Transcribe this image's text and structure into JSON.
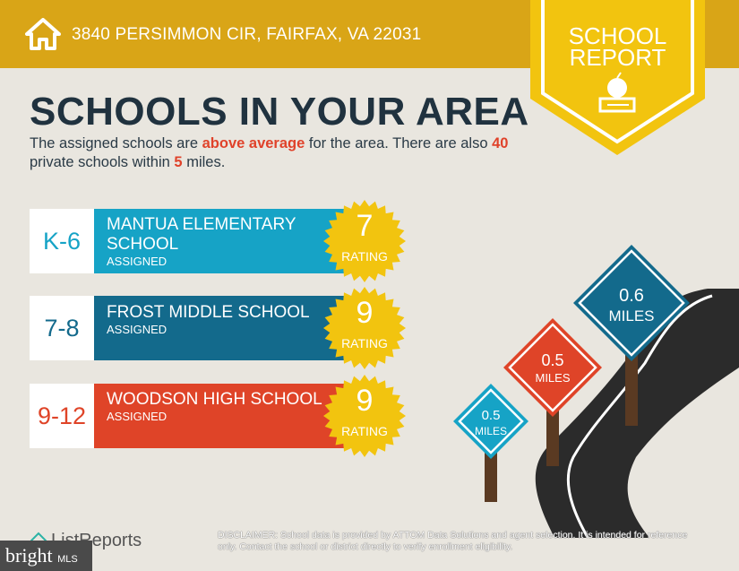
{
  "header": {
    "address": "3840 PERSIMMON CIR, FAIRFAX, VA 22031",
    "icon": "home-icon"
  },
  "badge": {
    "line1": "SCHOOL",
    "line2": "REPORT",
    "icon": "apple-books-icon"
  },
  "title": "SCHOOLS IN YOUR AREA",
  "subtitle": {
    "p1": "The assigned schools are ",
    "hl1": "above average",
    "p2": " for the area. There are also ",
    "hl2": "40",
    "p3": " private schools within ",
    "hl3": "5",
    "p4": " miles."
  },
  "schools": [
    {
      "grade": "K-6",
      "name": "MANTUA ELEMENTARY SCHOOL",
      "status": "ASSIGNED",
      "rating": "7",
      "rating_label": "RATING",
      "color": "#16a3c6"
    },
    {
      "grade": "7-8",
      "name": "FROST MIDDLE SCHOOL",
      "status": "ASSIGNED",
      "rating": "9",
      "rating_label": "RATING",
      "color": "#136a8c"
    },
    {
      "grade": "9-12",
      "name": "WOODSON HIGH SCHOOL",
      "status": "ASSIGNED",
      "rating": "9",
      "rating_label": "RATING",
      "color": "#df4428"
    }
  ],
  "signs": [
    {
      "value": "0.6",
      "unit": "MILES",
      "color": "#136a8c"
    },
    {
      "value": "0.5",
      "unit": "MILES",
      "color": "#df4428"
    },
    {
      "value": "0.5",
      "unit": "MILES",
      "color": "#16a3c6"
    }
  ],
  "footer": {
    "logo": "ListReports",
    "disclaimer_label": "DISCLAIMER:",
    "disclaimer": " School data is provided by ATTOM Data Solutions and agent selection. It is intended for reference only. Contact the school or district directly to verify enrollment eligibility.",
    "mls_brand": "bright",
    "mls_suffix": "MLS"
  },
  "colors": {
    "gold": "#d9a517",
    "yellow": "#f2c40f",
    "dark": "#20323f"
  }
}
